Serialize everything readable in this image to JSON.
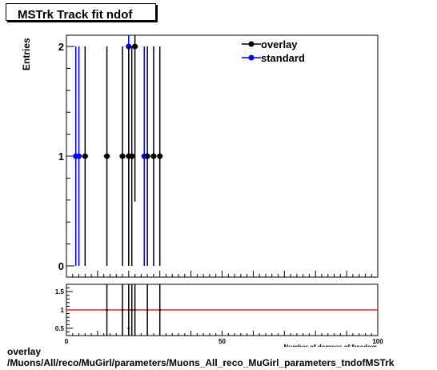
{
  "title": "MSTrk Track fit ndof",
  "ylabel": "Entries",
  "xlabel": "Number of degrees of freedom",
  "footer": {
    "line1": "overlay",
    "line2": "/Muons/All/reco/MuGirl/parameters/Muons_All_reco_MuGirl_parameters_tndofMSTrk"
  },
  "colors": {
    "overlay": "#000000",
    "standard": "#0000ff",
    "ratio_line": "#cc0000"
  },
  "chart_data": [
    {
      "type": "scatter",
      "panel": "main",
      "xlim": [
        0,
        100
      ],
      "ylim": [
        0,
        2.1
      ],
      "y_ticks": [
        0,
        1,
        2
      ],
      "legend_position": "top-right",
      "series": [
        {
          "name": "overlay",
          "x": [
            6,
            13,
            18,
            20,
            21,
            22,
            26,
            28,
            30
          ],
          "y": [
            1,
            1,
            1,
            1,
            1,
            2,
            1,
            1,
            1
          ]
        },
        {
          "name": "standard",
          "x": [
            3,
            4,
            20,
            25
          ],
          "y": [
            1,
            1,
            2,
            1
          ]
        }
      ]
    },
    {
      "type": "scatter",
      "panel": "ratio",
      "xlim": [
        0,
        100
      ],
      "ylim": [
        0.3,
        1.7
      ],
      "y_ticks": [
        0.5,
        1,
        1.5
      ],
      "x_ticks": [
        0,
        50,
        100
      ],
      "reference_line": 1,
      "x": [
        13,
        18,
        20,
        21,
        22,
        26,
        30
      ],
      "y": [
        1,
        1,
        0.5,
        1,
        1,
        1,
        1
      ]
    }
  ]
}
